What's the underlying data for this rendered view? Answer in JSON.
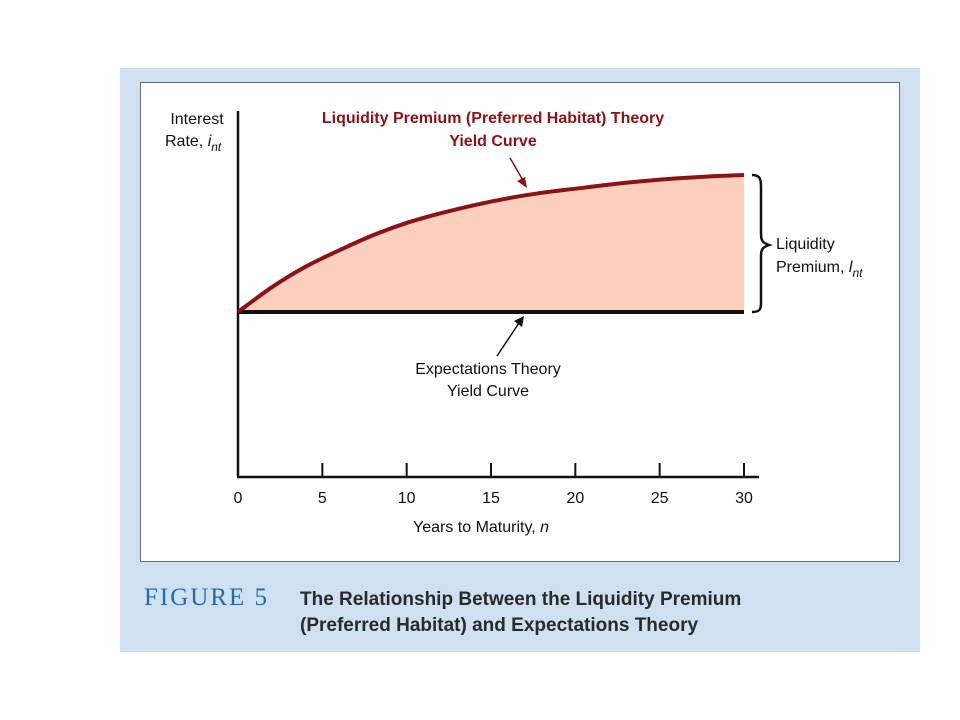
{
  "figure": {
    "number_label": "FIGURE 5",
    "caption_line1": "The Relationship Between the Liquidity Premium",
    "caption_line2": "(Preferred Habitat) and Expectations Theory"
  },
  "colors": {
    "panel": "#cfe0f1",
    "curve": "#8b1216",
    "fill": "#fcd0bc",
    "caption_number": "#1f6cae",
    "axis": "#111111"
  },
  "chart_data": {
    "type": "line",
    "xlabel": {
      "text": "Years to Maturity, ",
      "var": "n"
    },
    "ylabel": {
      "line1": "Interest",
      "line2": "Rate, ",
      "var": "i",
      "sub": "nt"
    },
    "x_ticks": [
      0,
      5,
      10,
      15,
      20,
      25,
      30
    ],
    "xlim": [
      0,
      30
    ],
    "grid": false,
    "series": [
      {
        "name": "Liquidity Premium (Preferred Habitat) Theory Yield Curve",
        "x": [
          0,
          2,
          4,
          6,
          8,
          10,
          12,
          14,
          16,
          18,
          20,
          22,
          24,
          26,
          28,
          30
        ],
        "y": [
          0,
          0.18,
          0.33,
          0.45,
          0.56,
          0.65,
          0.72,
          0.78,
          0.83,
          0.87,
          0.9,
          0.93,
          0.955,
          0.975,
          0.99,
          1.0
        ]
      },
      {
        "name": "Expectations Theory Yield Curve",
        "x": [
          0,
          30
        ],
        "y": [
          0,
          0
        ]
      }
    ],
    "annotations": {
      "top_curve_line1": "Liquidity Premium (Preferred Habitat) Theory",
      "top_curve_line2": "Yield Curve",
      "flat_curve_line1": "Expectations Theory",
      "flat_curve_line2": "Yield Curve",
      "premium_line1": "Liquidity",
      "premium_line2": "Premium, ",
      "premium_var": "l",
      "premium_sub": "nt"
    }
  }
}
